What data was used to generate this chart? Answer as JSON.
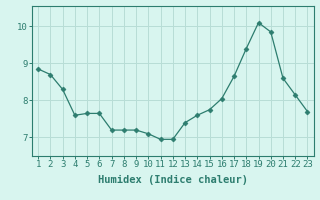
{
  "x": [
    1,
    2,
    3,
    4,
    5,
    6,
    7,
    8,
    9,
    10,
    11,
    12,
    13,
    14,
    15,
    16,
    17,
    18,
    19,
    20,
    21,
    22,
    23
  ],
  "y": [
    8.85,
    8.7,
    8.3,
    7.6,
    7.65,
    7.65,
    7.2,
    7.2,
    7.2,
    7.1,
    6.95,
    6.95,
    7.4,
    7.6,
    7.75,
    8.05,
    8.65,
    9.4,
    10.1,
    9.85,
    8.6,
    8.15,
    7.7
  ],
  "line_color": "#2d7d6f",
  "marker": "D",
  "marker_size": 2.5,
  "bg_color": "#d8f5ef",
  "grid_color": "#b8ddd6",
  "xlabel": "Humidex (Indice chaleur)",
  "xlim": [
    0.5,
    23.5
  ],
  "ylim": [
    6.5,
    10.55
  ],
  "yticks": [
    7,
    8,
    9,
    10
  ],
  "xticks": [
    1,
    2,
    3,
    4,
    5,
    6,
    7,
    8,
    9,
    10,
    11,
    12,
    13,
    14,
    15,
    16,
    17,
    18,
    19,
    20,
    21,
    22,
    23
  ],
  "tick_color": "#2d7d6f",
  "label_fontsize": 7.5,
  "tick_fontsize": 6.5
}
